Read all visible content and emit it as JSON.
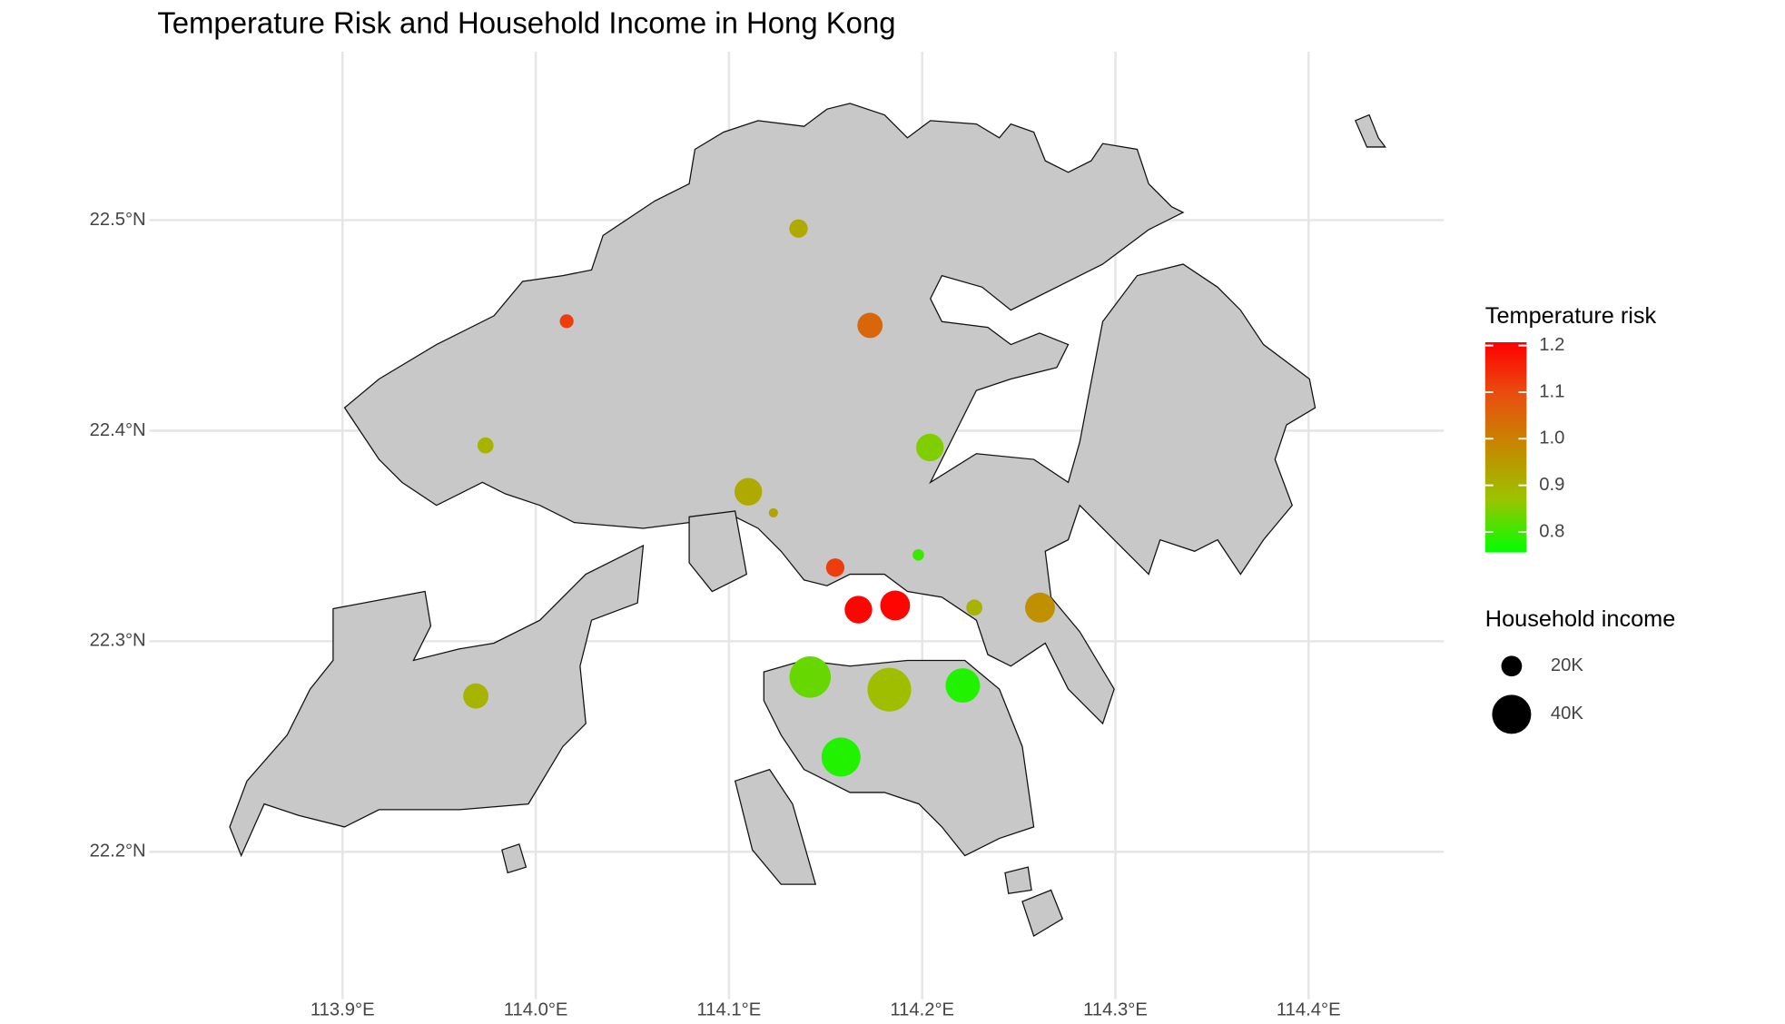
{
  "chart_data": {
    "type": "scatter",
    "title": "Temperature Risk and Household Income in Hong Kong",
    "x": [
      114.136,
      114.016,
      114.173,
      113.974,
      114.204,
      114.11,
      114.123,
      114.198,
      114.155,
      114.167,
      114.186,
      114.227,
      114.261,
      113.969,
      114.142,
      114.183,
      114.221,
      114.158
    ],
    "y": [
      22.496,
      22.452,
      22.45,
      22.393,
      22.392,
      22.371,
      22.361,
      22.341,
      22.335,
      22.315,
      22.317,
      22.316,
      22.316,
      22.274,
      22.283,
      22.277,
      22.279,
      22.245
    ],
    "color_values": [
      0.92,
      1.12,
      1.05,
      0.9,
      0.85,
      0.92,
      0.93,
      0.8,
      1.12,
      1.2,
      1.2,
      0.9,
      0.97,
      0.9,
      0.83,
      0.88,
      0.78,
      0.78
    ],
    "size_values": [
      17500,
      12500,
      25000,
      15000,
      27500,
      27500,
      7500,
      10000,
      17500,
      27500,
      30000,
      15000,
      30000,
      25000,
      42500,
      45000,
      35000,
      40000
    ],
    "xlim": [
      113.8,
      114.47
    ],
    "ylim": [
      22.13,
      22.58
    ],
    "xticks": [
      {
        "value": 113.9,
        "label": "113.9°E"
      },
      {
        "value": 114.0,
        "label": "114.0°E"
      },
      {
        "value": 114.1,
        "label": "114.1°E"
      },
      {
        "value": 114.2,
        "label": "114.2°E"
      },
      {
        "value": 114.3,
        "label": "114.3°E"
      },
      {
        "value": 114.4,
        "label": "114.4°E"
      }
    ],
    "yticks": [
      {
        "value": 22.2,
        "label": "22.2°N"
      },
      {
        "value": 22.3,
        "label": "22.3°N"
      },
      {
        "value": 22.4,
        "label": "22.4°N"
      },
      {
        "value": 22.5,
        "label": "22.5°N"
      }
    ],
    "grid": true,
    "color_legend": {
      "title": "Temperature risk",
      "limits": [
        0.756,
        1.207
      ],
      "colors": [
        "#00ff00",
        "#9bc400",
        "#c48a00",
        "#e84f10",
        "#ff0000"
      ],
      "ticks": [
        0.8,
        0.9,
        {
          "value": 1,
          "label": "1.0"
        },
        1.1,
        1.2
      ]
    },
    "size_legend": {
      "title": "Household income",
      "breaks": [
        {
          "value": 20000,
          "label": "20K"
        },
        {
          "value": 40000,
          "label": "40K"
        }
      ]
    }
  }
}
